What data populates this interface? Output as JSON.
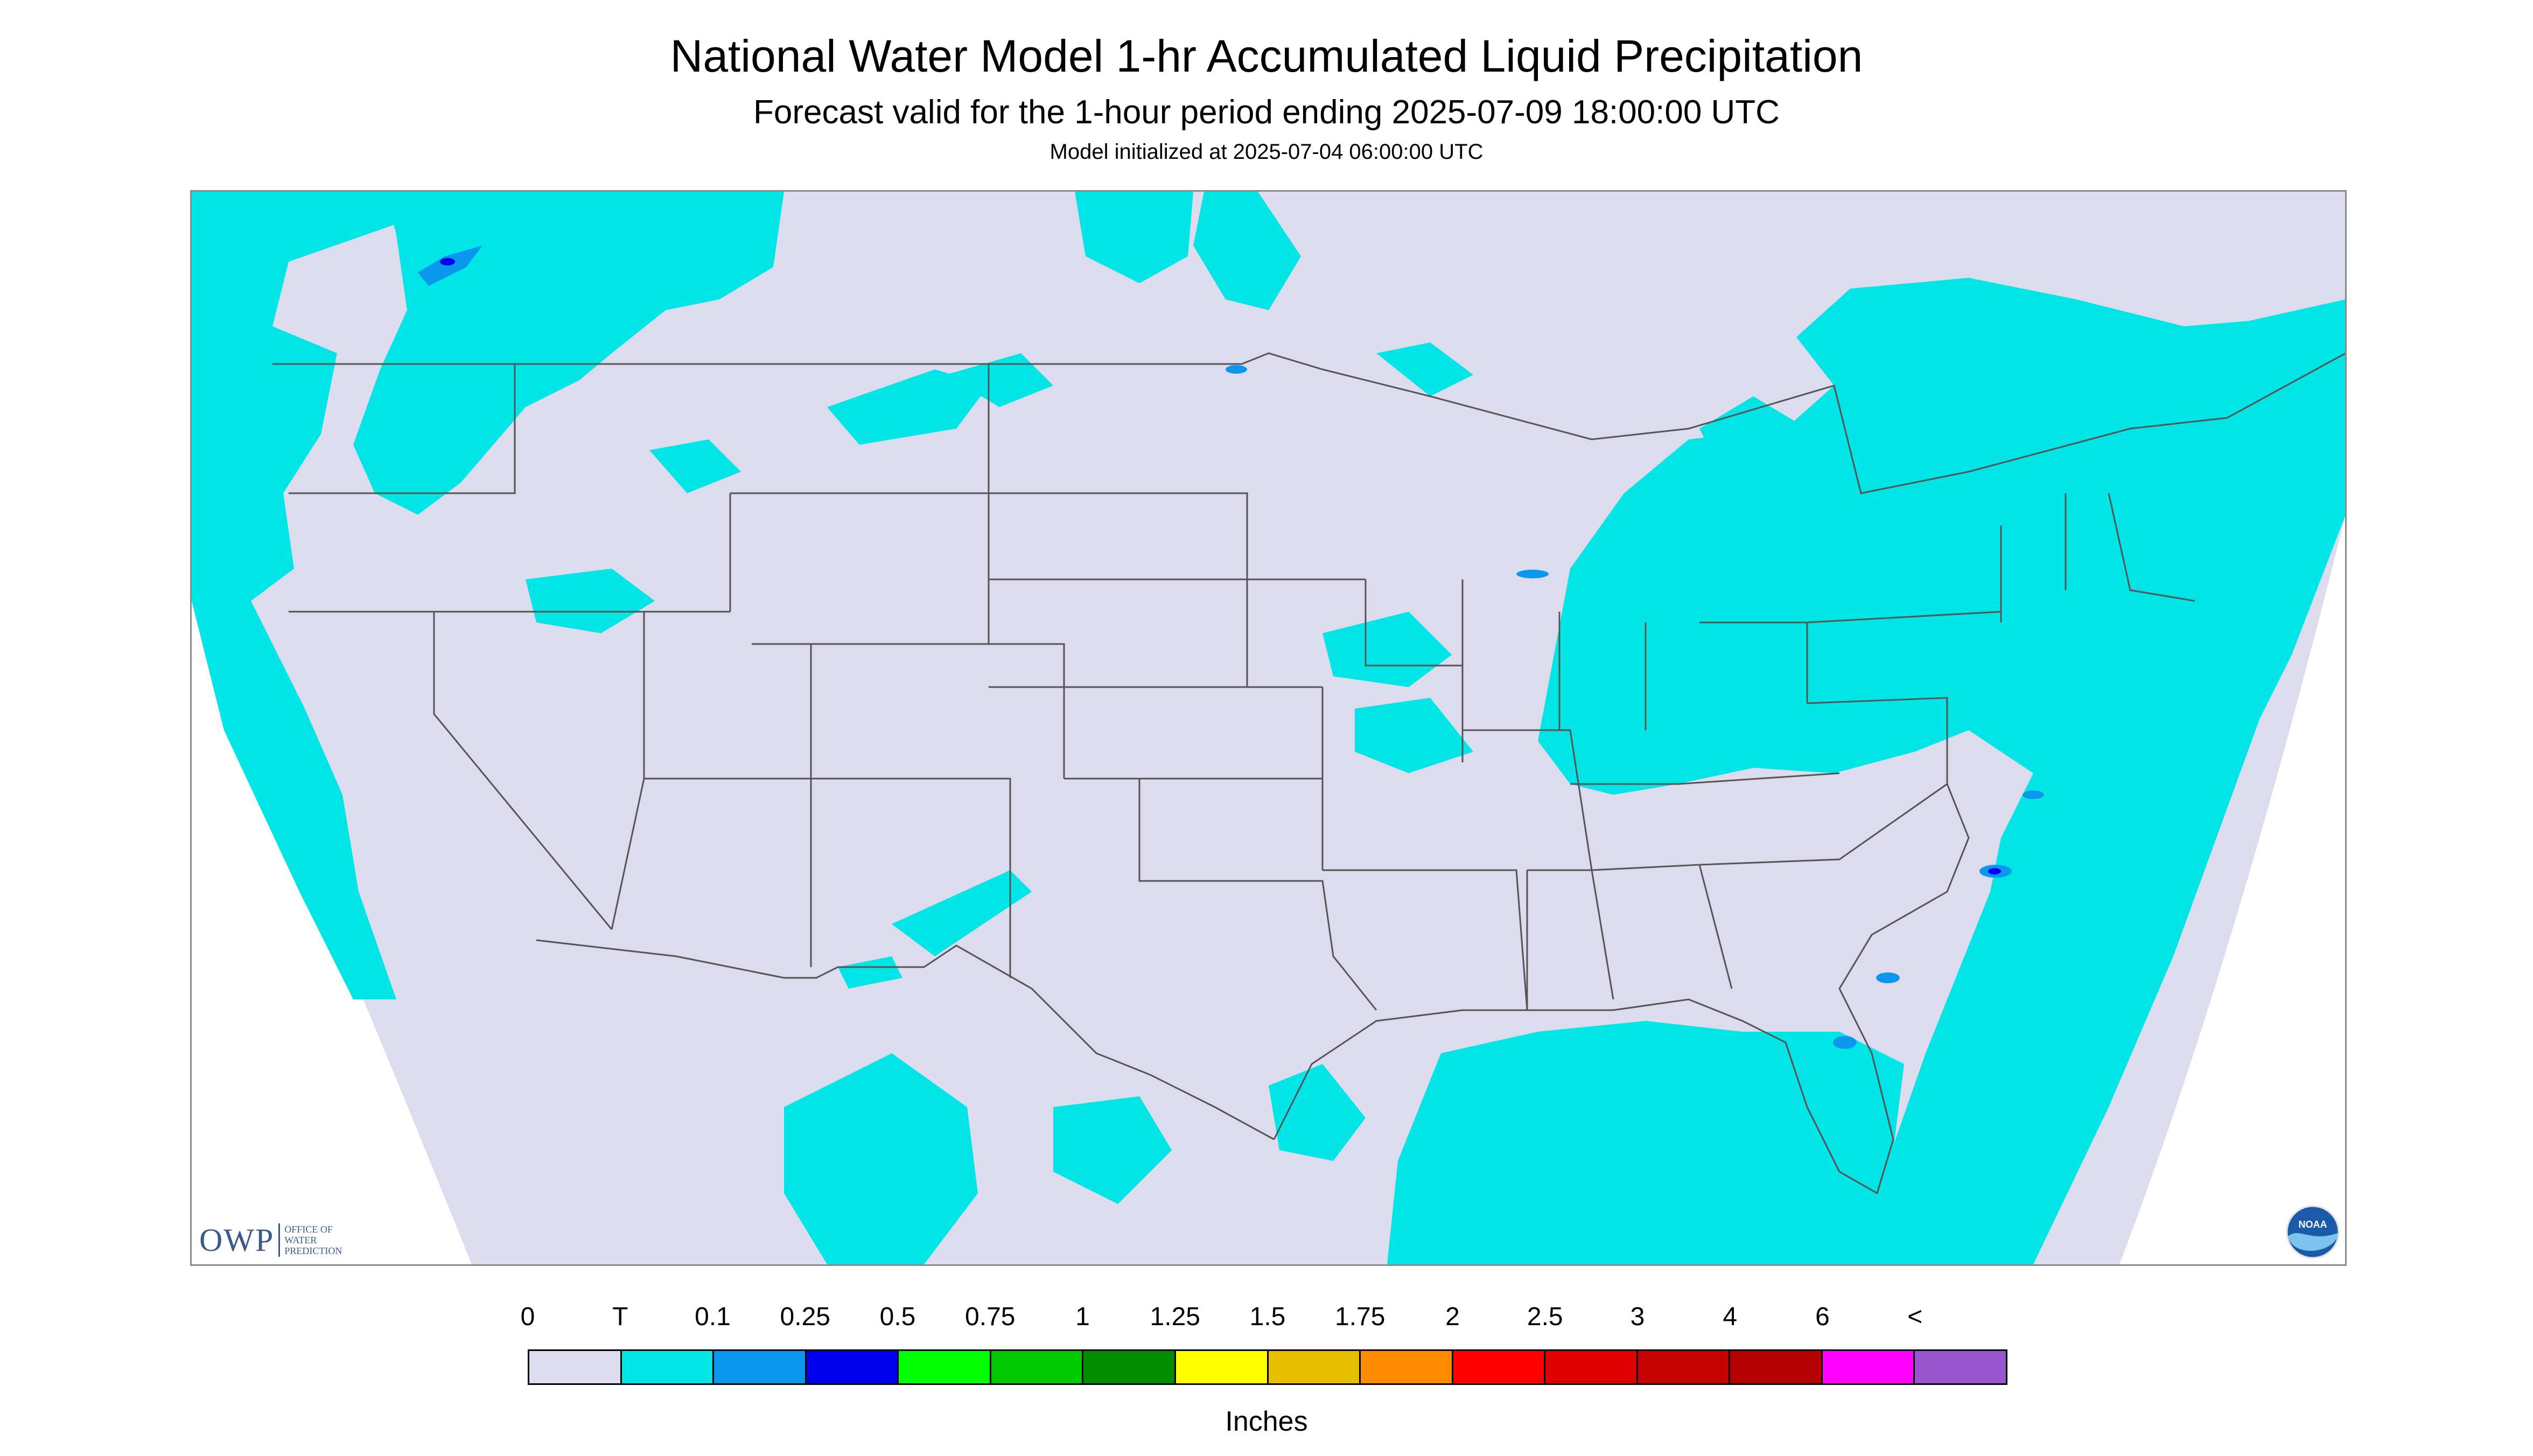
{
  "header": {
    "title": "National Water Model 1-hr Accumulated Liquid Precipitation",
    "subtitle": "Forecast valid for the 1-hour period ending 2025-07-09 18:00:00 UTC",
    "init_line": "Model initialized at 2025-07-04 06:00:00 UTC"
  },
  "map": {
    "background_color": "#dcdcee",
    "precip_color_trace": "#00e5e5",
    "precip_color_01": "#0c97ee",
    "outside_color": "#ffffff",
    "boundary_color": "#555555",
    "region": "Contiguous United States with southern Canada, northern Mexico, Gulf of Mexico and western Atlantic"
  },
  "logos": {
    "owp": {
      "main": "OWP",
      "sub_line1": "OFFICE OF",
      "sub_line2": "WATER",
      "sub_line3": "PREDICTION"
    },
    "noaa": {
      "text": "NOAA"
    }
  },
  "legend": {
    "labels": [
      "0",
      "T",
      "0.1",
      "0.25",
      "0.5",
      "0.75",
      "1",
      "1.25",
      "1.5",
      "1.75",
      "2",
      "2.5",
      "3",
      "4",
      "6",
      "<"
    ],
    "colors": [
      "#dcdcee",
      "#00e5e5",
      "#0c97ee",
      "#0000ee",
      "#00ff00",
      "#00c800",
      "#008c00",
      "#ffff00",
      "#e6be00",
      "#ff8c00",
      "#ff0000",
      "#dc0000",
      "#c40000",
      "#b40000",
      "#ff00ff",
      "#9955cc"
    ],
    "units": "Inches"
  }
}
